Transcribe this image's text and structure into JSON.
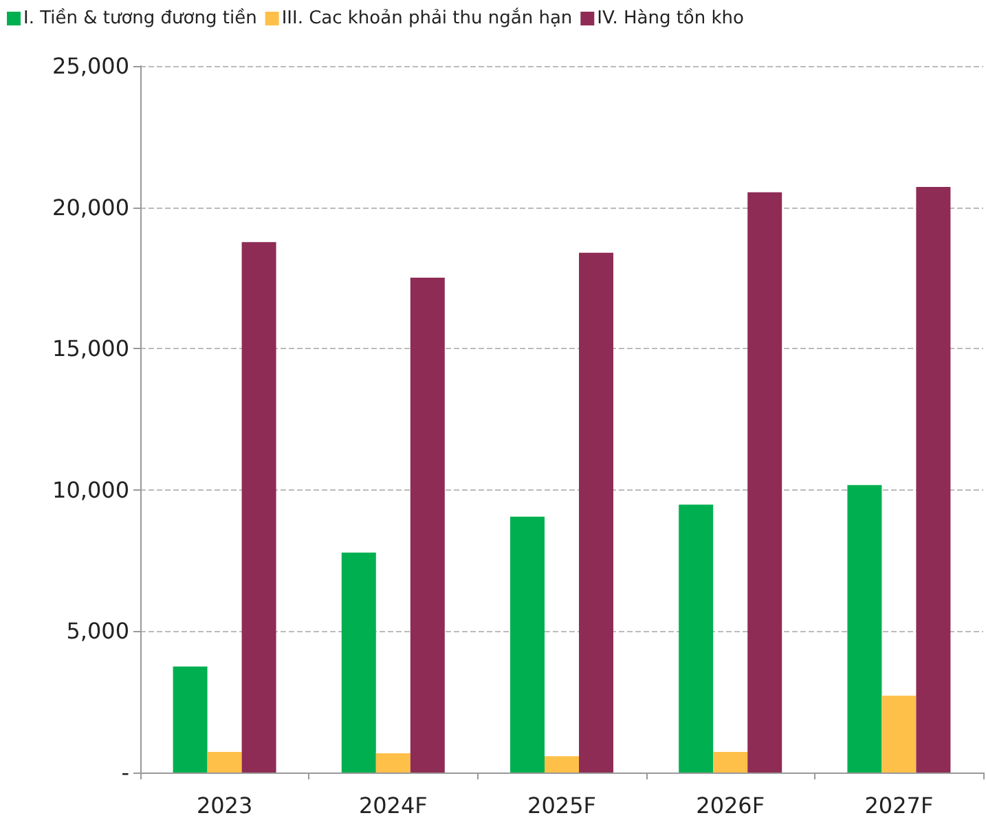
{
  "chart_data": {
    "type": "bar",
    "categories": [
      "2023",
      "2024F",
      "2025F",
      "2026F",
      "2027F"
    ],
    "series": [
      {
        "name": "I. Tiền & tương đương tiền",
        "color": "#00b050",
        "values": [
          3750,
          7780,
          9050,
          9480,
          10170
        ]
      },
      {
        "name": "III. Cac khoản phải thu ngắn hạn",
        "color": "#ffc04a",
        "values": [
          730,
          680,
          580,
          730,
          2720
        ]
      },
      {
        "name": "IV. Hàng tồn kho",
        "color": "#8e2c55",
        "values": [
          18770,
          17510,
          18390,
          20530,
          20720
        ]
      }
    ],
    "ylim": [
      0,
      25000
    ],
    "yticks": [
      {
        "value": 0,
        "label": "-"
      },
      {
        "value": 5000,
        "label": "5,000"
      },
      {
        "value": 10000,
        "label": "10,000"
      },
      {
        "value": 15000,
        "label": "15,000"
      },
      {
        "value": 20000,
        "label": "20,000"
      },
      {
        "value": 25000,
        "label": "25,000"
      }
    ],
    "grid": "y",
    "legend": "top left"
  }
}
